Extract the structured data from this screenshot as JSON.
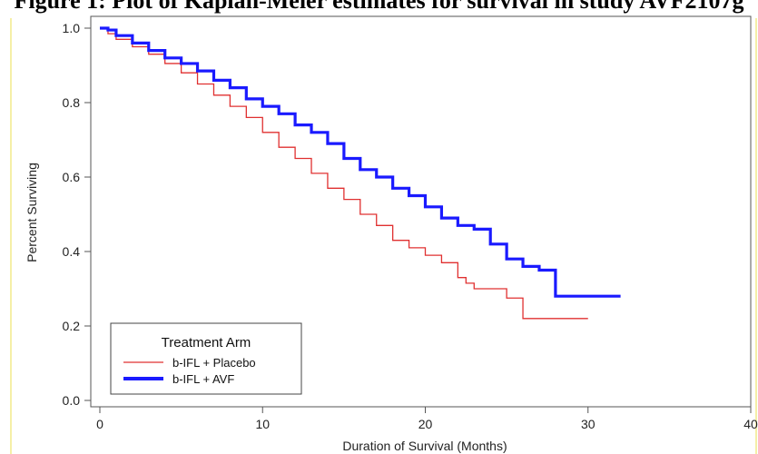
{
  "title": "Figure 1:  Plot of Kaplan-Meier estimates for survival in study AVF2107g",
  "colors": {
    "placebo": "#e03030",
    "avf": "#1a1aff",
    "axis": "#555555",
    "frame": "#f2ea8a"
  },
  "chart_data": {
    "type": "line",
    "step": true,
    "title": "Figure 1:  Plot of Kaplan-Meier estimates for survival in study AVF2107g",
    "xlabel": "Duration of Survival (Months)",
    "ylabel": "Percent Surviving",
    "xlim": [
      0,
      40
    ],
    "ylim": [
      0,
      1.0
    ],
    "xticks": [
      0,
      10,
      20,
      30,
      40
    ],
    "yticks": [
      0.0,
      0.2,
      0.4,
      0.6,
      0.8,
      1.0
    ],
    "xtick_labels": [
      "0",
      "10",
      "20",
      "30",
      "40"
    ],
    "ytick_labels": [
      "0.0",
      "0.2",
      "0.4",
      "0.6",
      "0.8",
      "1.0"
    ],
    "grid": false,
    "legend": {
      "title": "Treatment Arm",
      "position": "bottom-left"
    },
    "series": [
      {
        "name": "b-IFL + Placebo",
        "color": "#e03030",
        "x": [
          0,
          0.5,
          1,
          2,
          3,
          4,
          5,
          6,
          7,
          8,
          9,
          10,
          11,
          12,
          13,
          14,
          15,
          16,
          17,
          18,
          19,
          20,
          21,
          22,
          22.5,
          23,
          24,
          25,
          26,
          27,
          28,
          29,
          30
        ],
        "y": [
          1.0,
          0.985,
          0.97,
          0.95,
          0.93,
          0.905,
          0.88,
          0.85,
          0.82,
          0.79,
          0.76,
          0.72,
          0.68,
          0.65,
          0.61,
          0.57,
          0.54,
          0.5,
          0.47,
          0.43,
          0.41,
          0.39,
          0.37,
          0.33,
          0.315,
          0.3,
          0.3,
          0.275,
          0.22,
          0.22,
          0.22,
          0.22,
          0.22
        ]
      },
      {
        "name": "b-IFL + AVF",
        "color": "#1a1aff",
        "x": [
          0,
          0.5,
          1,
          2,
          3,
          4,
          5,
          6,
          7,
          8,
          9,
          10,
          11,
          12,
          13,
          14,
          15,
          16,
          17,
          18,
          19,
          20,
          21,
          22,
          23,
          24,
          25,
          26,
          27,
          27.5,
          28,
          29,
          30,
          31,
          32
        ],
        "y": [
          1.0,
          0.995,
          0.98,
          0.96,
          0.94,
          0.92,
          0.905,
          0.885,
          0.86,
          0.84,
          0.81,
          0.79,
          0.77,
          0.74,
          0.72,
          0.69,
          0.65,
          0.62,
          0.6,
          0.57,
          0.55,
          0.52,
          0.49,
          0.47,
          0.46,
          0.42,
          0.38,
          0.36,
          0.35,
          0.35,
          0.28,
          0.28,
          0.28,
          0.28,
          0.28
        ]
      }
    ]
  }
}
